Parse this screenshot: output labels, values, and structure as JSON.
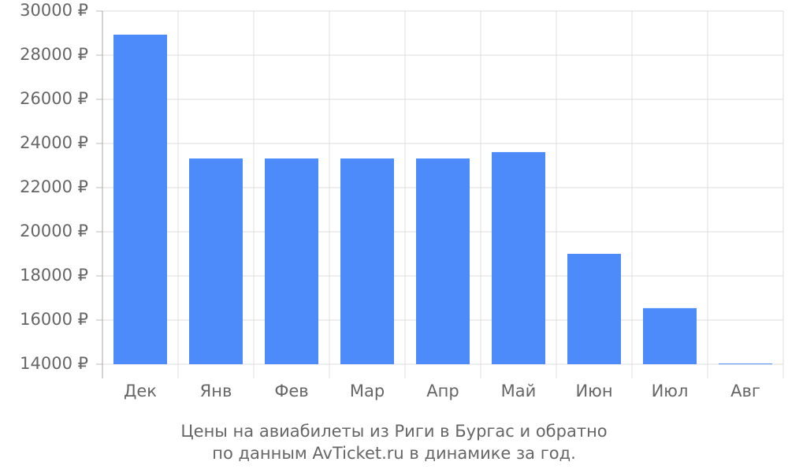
{
  "chart_data": {
    "type": "bar",
    "title": "Цены на авиабилеты из Риги в Бургас и обратно",
    "subtitle": "по данным AvTicket.ru в динамике за год.",
    "categories": [
      "Дек",
      "Янв",
      "Фев",
      "Мар",
      "Апр",
      "Май",
      "Июн",
      "Июл",
      "Авг"
    ],
    "values": [
      28930,
      23320,
      23320,
      23320,
      23320,
      23610,
      19000,
      16540,
      14030
    ],
    "color": "#4d8afa",
    "ylim": [
      14000,
      30000
    ],
    "yticks": [
      {
        "value": 14000,
        "label": "14000 ₽"
      },
      {
        "value": 16000,
        "label": "16000 ₽"
      },
      {
        "value": 18000,
        "label": "18000 ₽"
      },
      {
        "value": 20000,
        "label": "20000 ₽"
      },
      {
        "value": 22000,
        "label": "22000 ₽"
      },
      {
        "value": 24000,
        "label": "24000 ₽"
      },
      {
        "value": 26000,
        "label": "26000 ₽"
      },
      {
        "value": 28000,
        "label": "28000 ₽"
      },
      {
        "value": 30000,
        "label": "30000 ₽"
      }
    ],
    "grid": true
  }
}
